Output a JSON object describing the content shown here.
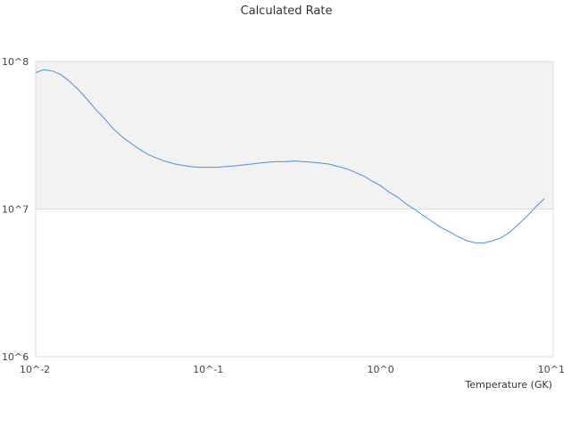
{
  "chart_data": {
    "type": "line",
    "title": "Calculated Rate",
    "xlabel": "Temperature (GK)",
    "ylabel": "",
    "x_scale": "log",
    "y_scale": "log",
    "xlim": [
      0.01,
      10
    ],
    "ylim": [
      1000000,
      100000000
    ],
    "x_ticks": [
      0.01,
      0.1,
      1,
      10
    ],
    "x_tick_labels": [
      "10^-2",
      "10^-1",
      "10^0",
      "10^1"
    ],
    "y_ticks": [
      1000000,
      10000000,
      100000000
    ],
    "y_tick_labels": [
      "10^6",
      "10^7",
      "10^8"
    ],
    "band_shading": "alternating light gray bands between y gridlines",
    "legend": "none",
    "series": [
      {
        "color": "#4a90e2",
        "x": [
          0.01,
          0.0112,
          0.0126,
          0.0141,
          0.0158,
          0.0178,
          0.02,
          0.0224,
          0.0251,
          0.0282,
          0.0316,
          0.0355,
          0.0398,
          0.0447,
          0.0501,
          0.0562,
          0.0631,
          0.0708,
          0.0794,
          0.0891,
          0.1,
          0.1122,
          0.1259,
          0.1413,
          0.1585,
          0.1778,
          0.1995,
          0.2239,
          0.2512,
          0.2818,
          0.3162,
          0.3548,
          0.3981,
          0.4467,
          0.5012,
          0.5623,
          0.631,
          0.7079,
          0.7943,
          0.8913,
          1.0,
          1.122,
          1.2589,
          1.4125,
          1.5849,
          1.7783,
          1.9953,
          2.2387,
          2.5119,
          2.8184,
          3.1623,
          3.5481,
          3.9811,
          4.4668,
          5.0119,
          5.6234,
          6.3096,
          7.0795,
          7.9433,
          8.9125
        ],
        "y": [
          84000000,
          88000000,
          86000000,
          81000000,
          73000000,
          64000000,
          55000000,
          47000000,
          41000000,
          35000000,
          31000000,
          28000000,
          25500000,
          23500000,
          22200000,
          21100000,
          20300000,
          19800000,
          19400000,
          19200000,
          19200000,
          19200000,
          19400000,
          19600000,
          19900000,
          20200000,
          20500000,
          20800000,
          21000000,
          21000000,
          21200000,
          21000000,
          20800000,
          20500000,
          20200000,
          19500000,
          18800000,
          17800000,
          16800000,
          15500000,
          14400000,
          13000000,
          12000000,
          10800000,
          9900000,
          9000000,
          8200000,
          7500000,
          7000000,
          6500000,
          6100000,
          5900000,
          5900000,
          6100000,
          6400000,
          7000000,
          7900000,
          9000000,
          10400000,
          11800000
        ]
      }
    ]
  }
}
